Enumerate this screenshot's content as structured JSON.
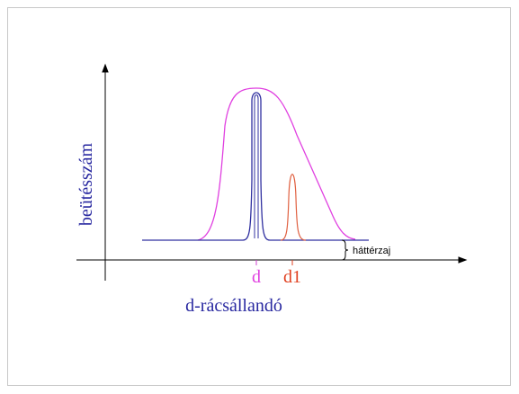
{
  "axis_label_y": "beütésszám",
  "axis_label_x": "d-rácsállandó",
  "peak_labels": [
    "d",
    "d1"
  ],
  "background_label": "háttérzaj"
}
